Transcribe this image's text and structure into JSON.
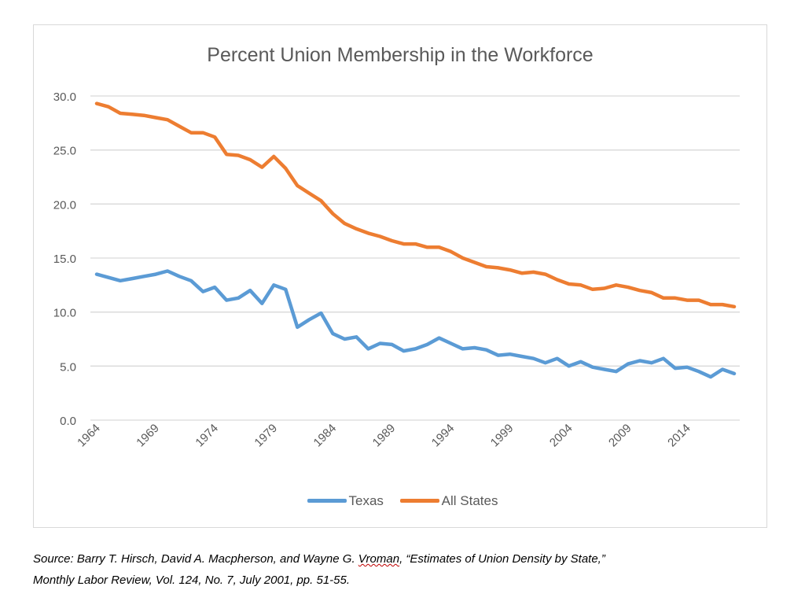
{
  "chart_data": {
    "type": "line",
    "title": "Percent Union Membership in the Workforce",
    "xlabel": "",
    "ylabel": "",
    "x": [
      1964,
      1965,
      1966,
      1967,
      1968,
      1969,
      1970,
      1971,
      1972,
      1973,
      1974,
      1975,
      1976,
      1977,
      1978,
      1979,
      1980,
      1981,
      1982,
      1983,
      1984,
      1985,
      1986,
      1987,
      1988,
      1989,
      1990,
      1991,
      1992,
      1993,
      1994,
      1995,
      1996,
      1997,
      1998,
      1999,
      2000,
      2001,
      2002,
      2003,
      2004,
      2005,
      2006,
      2007,
      2008,
      2009,
      2010,
      2011,
      2012,
      2013,
      2014,
      2015,
      2016,
      2017,
      2018
    ],
    "x_tick_labels": [
      "1964",
      "1969",
      "1974",
      "1979",
      "1984",
      "1989",
      "1994",
      "1999",
      "2004",
      "2009",
      "2014"
    ],
    "y_tick_labels": [
      "0.0",
      "5.0",
      "10.0",
      "15.0",
      "20.0",
      "25.0",
      "30.0"
    ],
    "ylim": [
      0,
      30
    ],
    "grid": true,
    "legend_position": "bottom",
    "series": [
      {
        "name": "Texas",
        "color": "#5b9bd5",
        "values": [
          13.5,
          13.2,
          12.9,
          13.1,
          13.3,
          13.5,
          13.8,
          13.3,
          12.9,
          11.9,
          12.3,
          11.1,
          11.3,
          12.0,
          10.8,
          12.5,
          12.1,
          8.6,
          9.3,
          9.9,
          8.0,
          7.5,
          7.7,
          6.6,
          7.1,
          7.0,
          6.4,
          6.6,
          7.0,
          7.6,
          7.1,
          6.6,
          6.7,
          6.5,
          6.0,
          6.1,
          5.9,
          5.7,
          5.3,
          5.7,
          5.0,
          5.4,
          4.9,
          4.7,
          4.5,
          5.2,
          5.5,
          5.3,
          5.7,
          4.8,
          4.9,
          4.5,
          4.0,
          4.7,
          4.3
        ]
      },
      {
        "name": "All States",
        "color": "#ed7d31",
        "values": [
          29.3,
          29.0,
          28.4,
          28.3,
          28.2,
          28.0,
          27.8,
          27.2,
          26.6,
          26.6,
          26.2,
          24.6,
          24.5,
          24.1,
          23.4,
          24.4,
          23.3,
          21.7,
          21.0,
          20.3,
          19.1,
          18.2,
          17.7,
          17.3,
          17.0,
          16.6,
          16.3,
          16.3,
          16.0,
          16.0,
          15.6,
          15.0,
          14.6,
          14.2,
          14.1,
          13.9,
          13.6,
          13.7,
          13.5,
          13.0,
          12.6,
          12.5,
          12.1,
          12.2,
          12.5,
          12.3,
          12.0,
          11.8,
          11.3,
          11.3,
          11.1,
          11.1,
          10.7,
          10.7,
          10.5
        ]
      }
    ]
  },
  "source": {
    "line1_a": "Source: Barry T. Hirsch, David A. Macpherson, and Wayne G. ",
    "line1_b": "Vroman",
    "line1_c": ", “Estimates of Union Density by State,”",
    "line2": "Monthly Labor Review, Vol. 124, No. 7, July 2001, pp. 51-55."
  }
}
